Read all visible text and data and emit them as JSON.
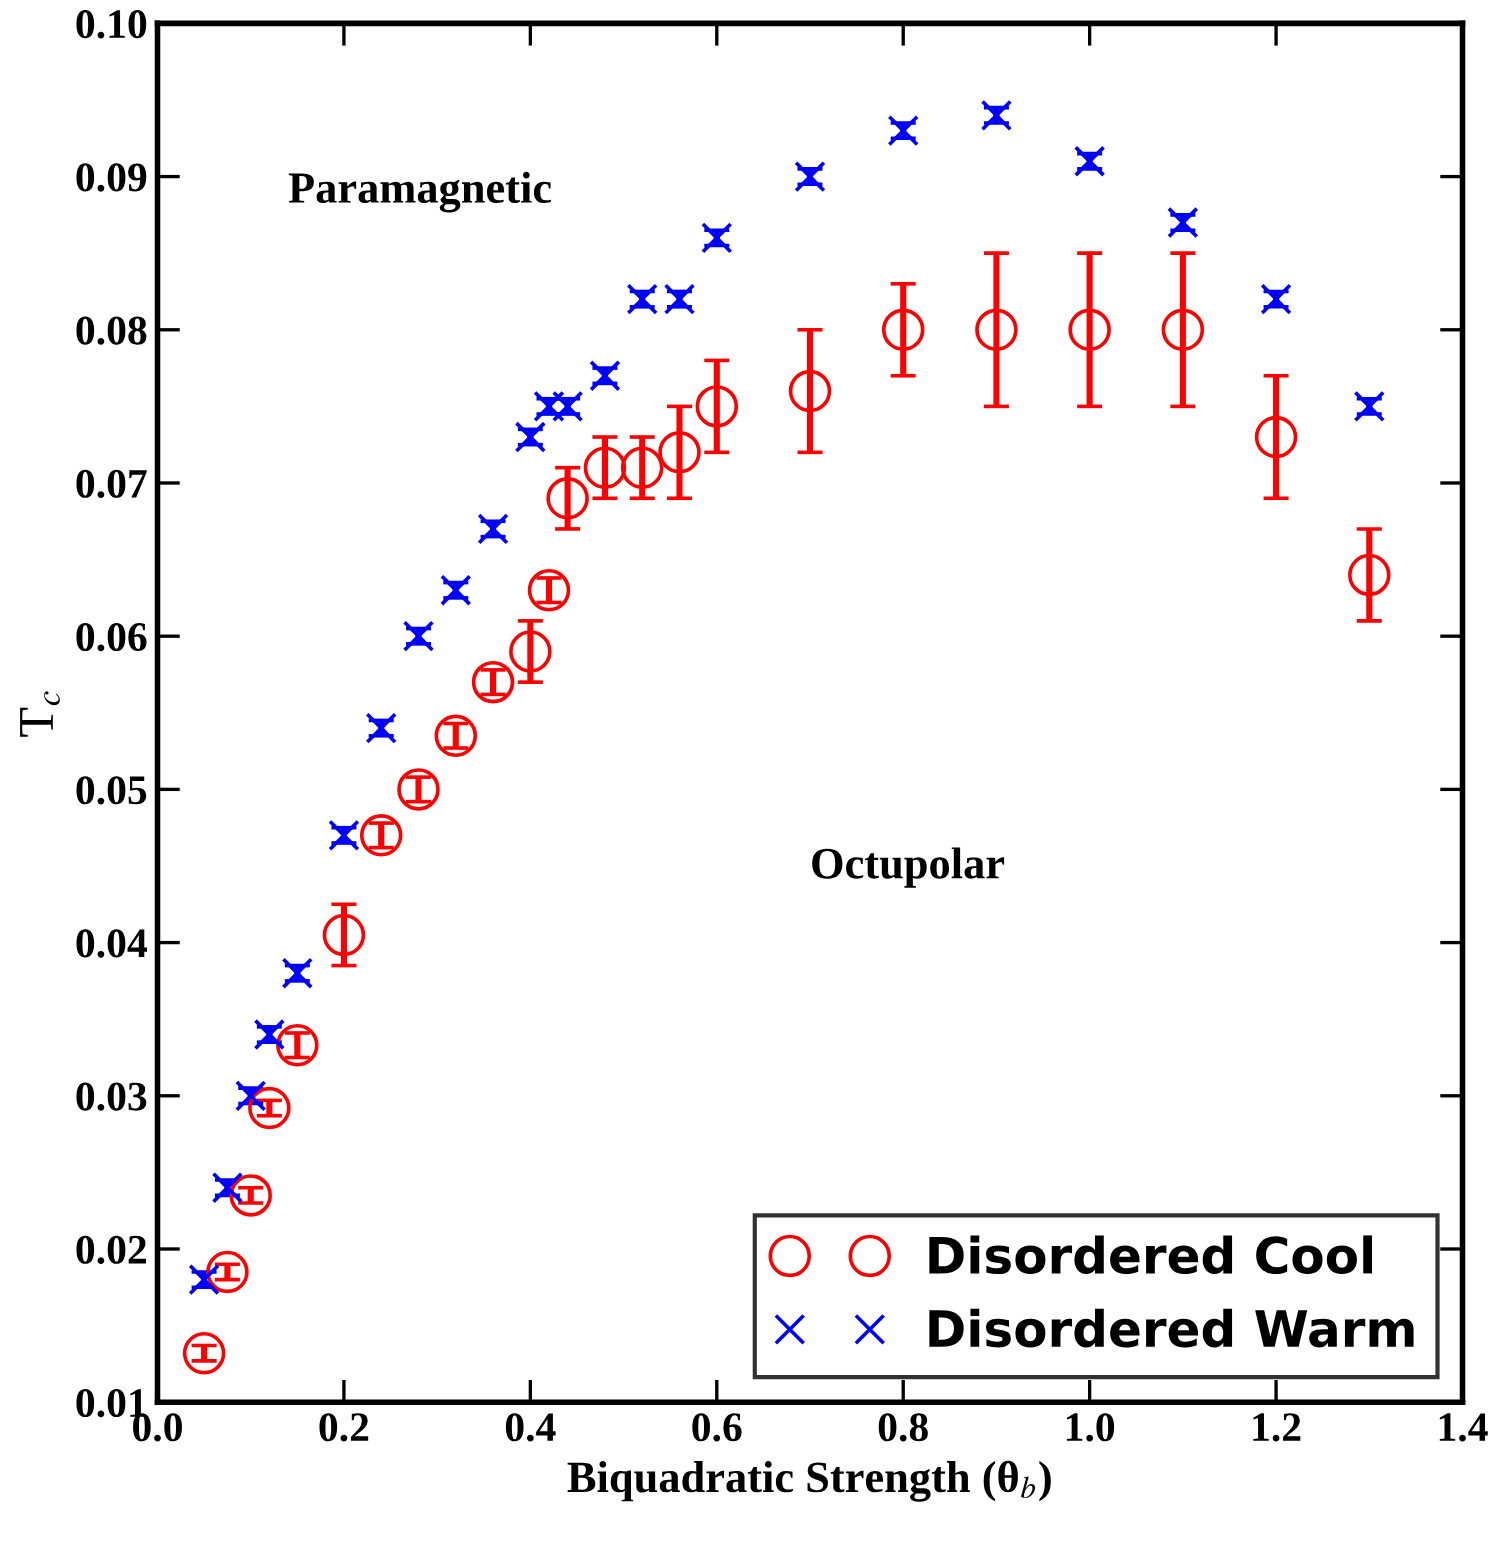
{
  "chart_data": {
    "type": "scatter",
    "xlabel": "Biquadratic Strength (θ$_{b}$)",
    "ylabel": "T$_{c}$",
    "annotations": [
      "Paramagnetic",
      "Octupolar"
    ],
    "xlim": [
      0,
      1.4
    ],
    "ylim": [
      0.01,
      0.1
    ],
    "xticks": [
      {
        "value": 0,
        "label": "0.0"
      },
      {
        "value": 0.2,
        "label": "0.2"
      },
      {
        "value": 0.4,
        "label": "0.4"
      },
      {
        "value": 0.6,
        "label": "0.6"
      },
      {
        "value": 0.8,
        "label": "0.8"
      },
      {
        "value": 1.0,
        "label": "1.0"
      },
      {
        "value": 1.2,
        "label": "1.2"
      },
      {
        "value": 1.4,
        "label": "1.4"
      }
    ],
    "yticks": [
      0.01,
      0.02,
      0.03,
      0.04,
      0.05,
      0.06,
      0.07,
      0.08,
      0.09,
      {
        "value": 0.1,
        "label": "0.10"
      }
    ],
    "grid": false,
    "legend": "bottom right",
    "series": [
      {
        "name": "Disordered Cool",
        "color": "#ff0000",
        "marker": "circle",
        "x": [
          0.05,
          0.075,
          0.1,
          0.12,
          0.15,
          0.2,
          0.24,
          0.28,
          0.32,
          0.36,
          0.4,
          0.42,
          0.44,
          0.48,
          0.52,
          0.56,
          0.6,
          0.7,
          0.8,
          0.9,
          1.0,
          1.1,
          1.2,
          1.3
        ],
        "values": [
          0.0132,
          0.0185,
          0.0235,
          0.0292,
          0.0333,
          0.0405,
          0.047,
          0.05,
          0.0535,
          0.057,
          0.059,
          0.063,
          0.069,
          0.071,
          0.071,
          0.072,
          0.075,
          0.076,
          0.08,
          0.08,
          0.08,
          0.08,
          0.073,
          0.064
        ],
        "errors": [
          0.0005,
          0.0005,
          0.0005,
          0.0005,
          0.0008,
          0.002,
          0.0008,
          0.0008,
          0.0008,
          0.0008,
          0.002,
          0.0008,
          0.002,
          0.002,
          0.002,
          0.003,
          0.003,
          0.004,
          0.003,
          0.005,
          0.005,
          0.005,
          0.004,
          0.003
        ]
      },
      {
        "name": "Disordered Warm",
        "color": "#0000ff",
        "marker": "cross",
        "x": [
          0.05,
          0.075,
          0.1,
          0.12,
          0.15,
          0.2,
          0.24,
          0.28,
          0.32,
          0.36,
          0.4,
          0.42,
          0.44,
          0.48,
          0.52,
          0.56,
          0.6,
          0.7,
          0.8,
          0.9,
          1.0,
          1.1,
          1.2,
          1.3
        ],
        "values": [
          0.018,
          0.024,
          0.03,
          0.034,
          0.038,
          0.047,
          0.054,
          0.06,
          0.063,
          0.067,
          0.073,
          0.075,
          0.075,
          0.077,
          0.082,
          0.082,
          0.086,
          0.09,
          0.093,
          0.094,
          0.091,
          0.087,
          0.082,
          0.075
        ],
        "errors": [
          0.0005,
          0.0005,
          0.0005,
          0.0005,
          0.0005,
          0.0005,
          0.0005,
          0.0005,
          0.0005,
          0.0005,
          0.0005,
          0.0005,
          0.0005,
          0.0005,
          0.0005,
          0.0005,
          0.0005,
          0.0005,
          0.0005,
          0.0005,
          0.0005,
          0.0005,
          0.0005,
          0.0005
        ]
      }
    ]
  }
}
